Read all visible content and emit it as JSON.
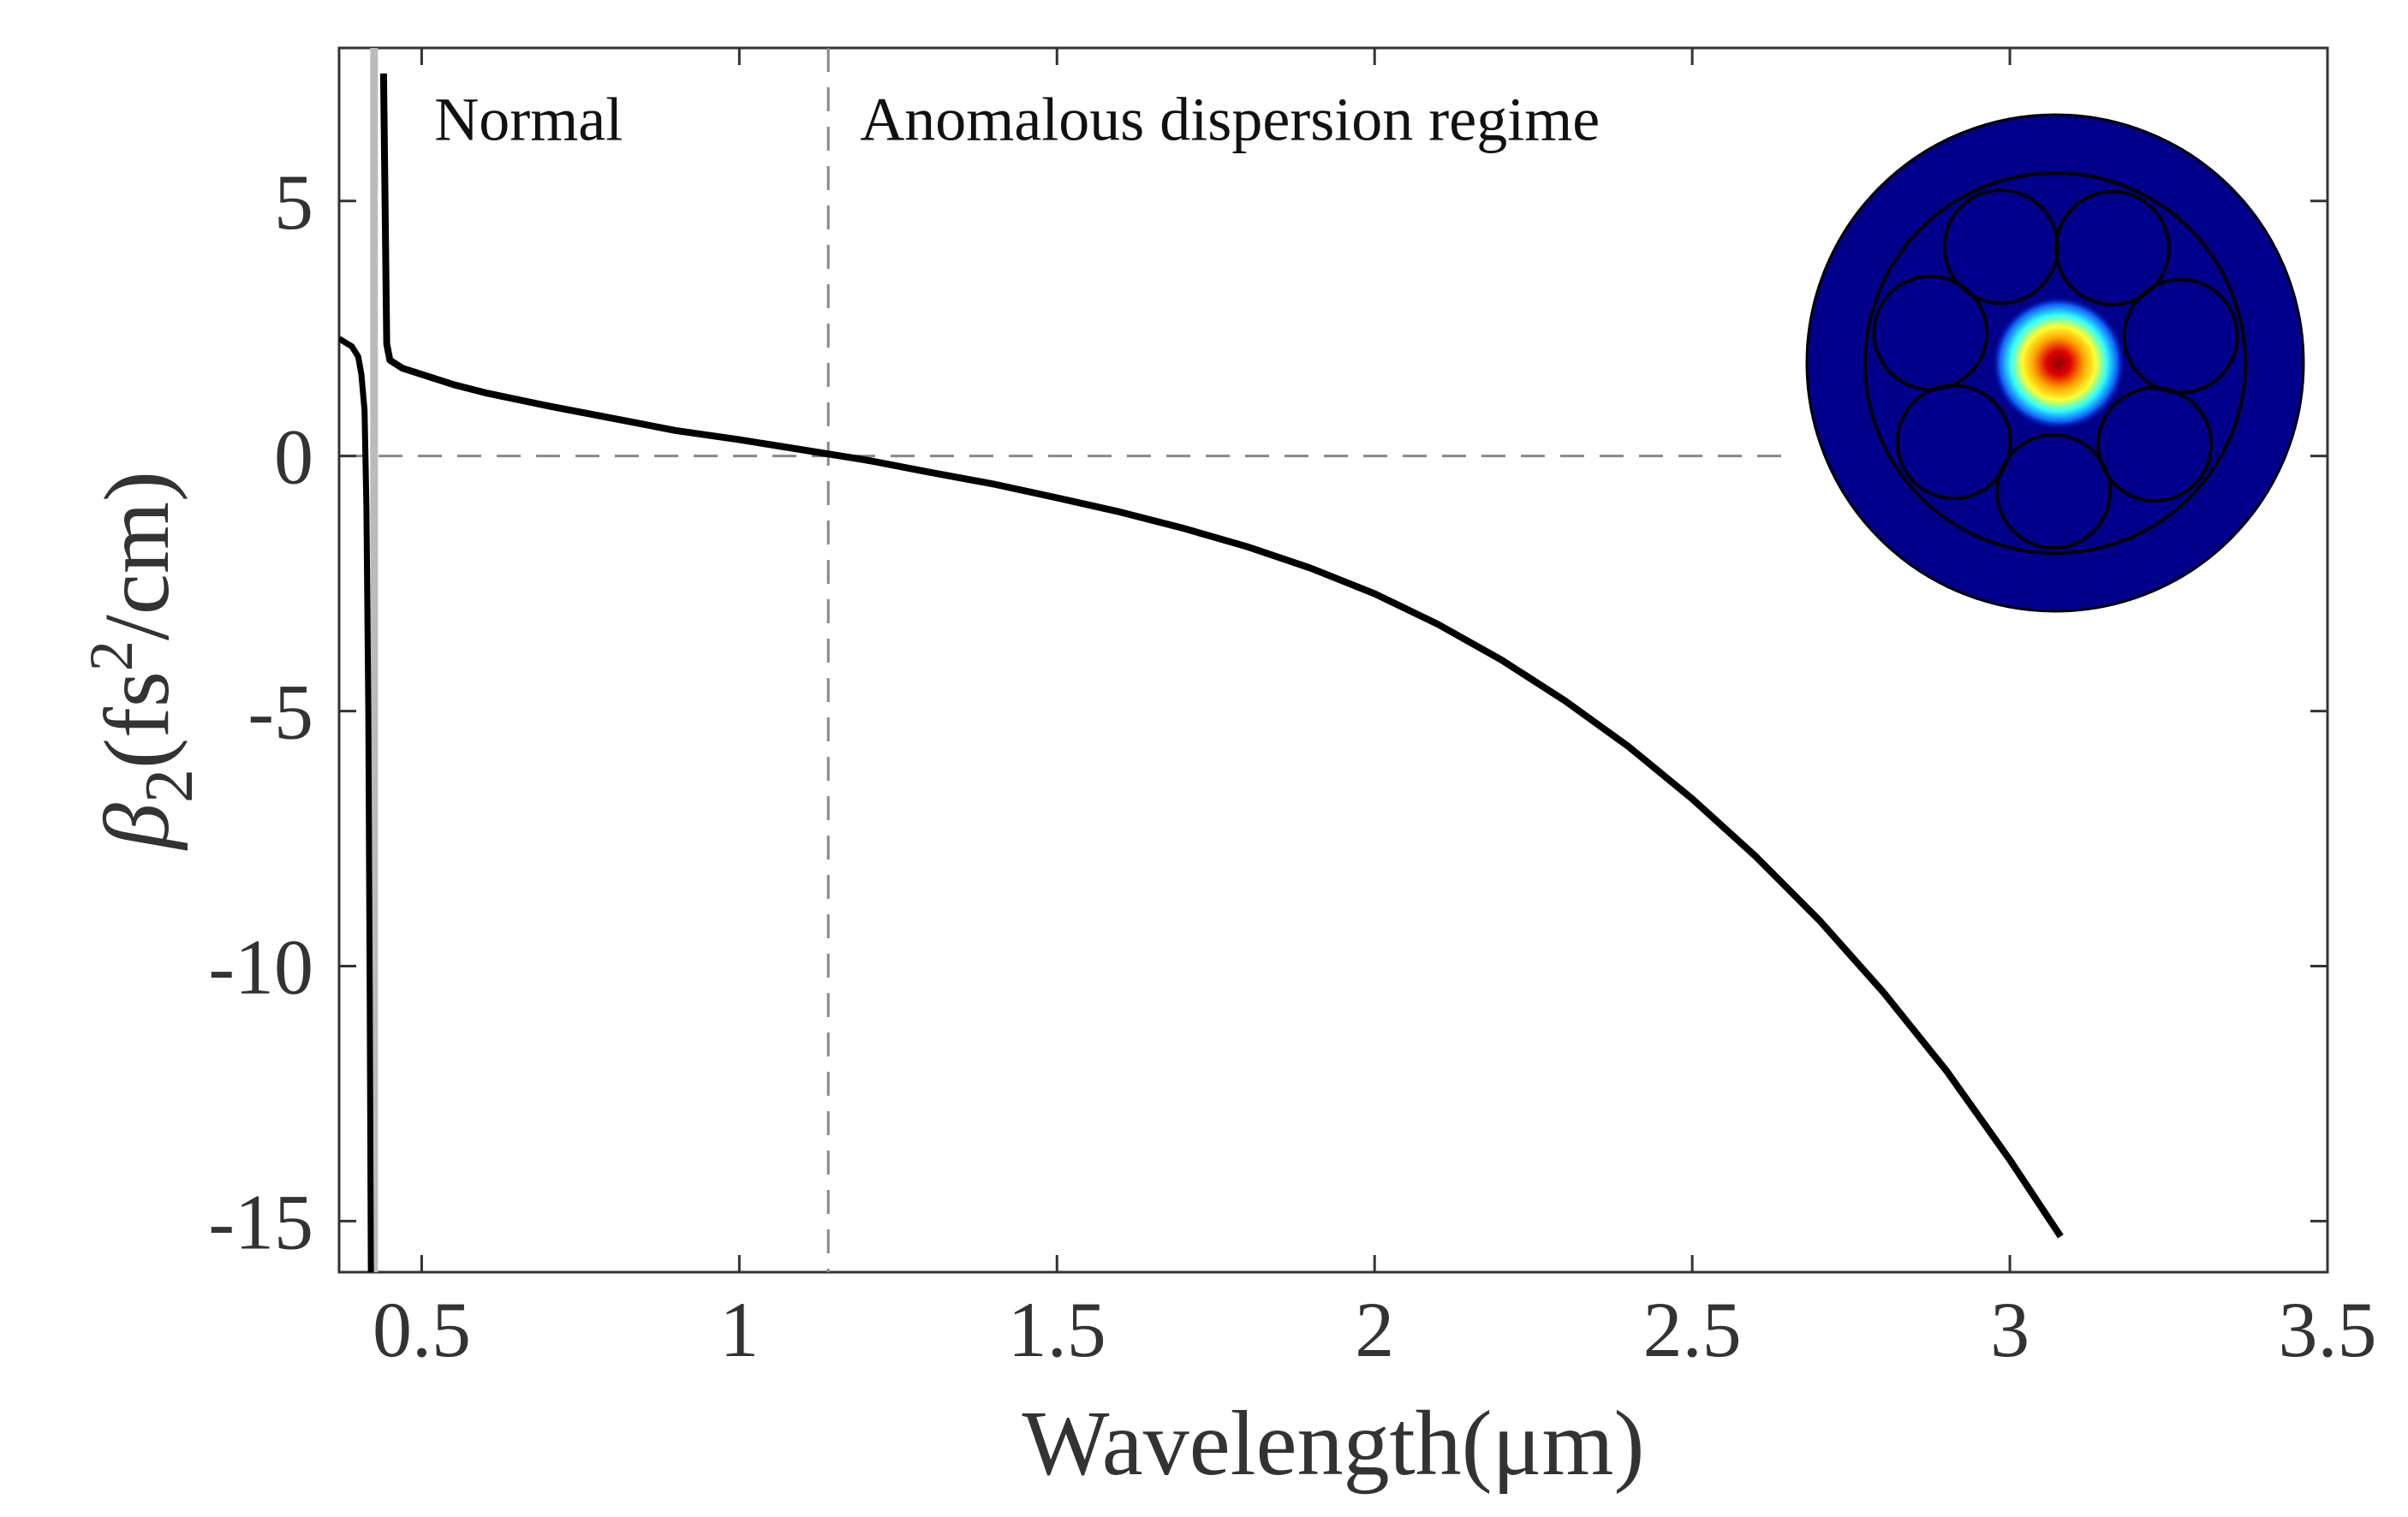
{
  "chart_data": {
    "type": "line",
    "xlabel": "Wavelength(μm)",
    "ylabel_symbol": "β",
    "ylabel_subscript": "2",
    "ylabel_unit_prefix": "(fs",
    "ylabel_unit_power": "2",
    "ylabel_unit_suffix": "/cm)",
    "xlim": [
      0.37,
      3.5
    ],
    "ylim": [
      -16,
      8
    ],
    "xticks": [
      0.5,
      1,
      1.5,
      2,
      2.5,
      3,
      3.5
    ],
    "xtick_labels": [
      "0.5",
      "1",
      "1.5",
      "2",
      "2.5",
      "3",
      "3.5"
    ],
    "yticks": [
      5,
      0,
      -5,
      -10,
      -15
    ],
    "ytick_labels": [
      "5",
      "0",
      "-5",
      "-10",
      "-15"
    ],
    "zero_dispersion_wavelength": 1.14,
    "annotations": [
      {
        "text": "Normal",
        "x": 0.52,
        "y": 6.2
      },
      {
        "text": "Anomalous dispersion regime",
        "x": 1.19,
        "y": 6.2
      }
    ],
    "series": [
      {
        "name": "beta2-main",
        "color": "#000000",
        "x": [
          0.44,
          0.445,
          0.45,
          0.47,
          0.5,
          0.55,
          0.6,
          0.7,
          0.8,
          0.9,
          1.0,
          1.1,
          1.2,
          1.3,
          1.4,
          1.5,
          1.6,
          1.7,
          1.8,
          1.9,
          2.0,
          2.1,
          2.2,
          2.3,
          2.4,
          2.5,
          2.6,
          2.7,
          2.8,
          2.9,
          3.0,
          3.08
        ],
        "y": [
          7.5,
          2.2,
          1.88,
          1.72,
          1.6,
          1.4,
          1.24,
          0.98,
          0.74,
          0.5,
          0.32,
          0.12,
          -0.08,
          -0.32,
          -0.55,
          -0.82,
          -1.1,
          -1.42,
          -1.78,
          -2.2,
          -2.7,
          -3.3,
          -4.0,
          -4.8,
          -5.7,
          -6.72,
          -7.85,
          -9.1,
          -10.5,
          -12.05,
          -13.8,
          -15.3
        ]
      },
      {
        "name": "beta2-short-wavelength-branch",
        "color": "#000000",
        "x": [
          0.37,
          0.39,
          0.4,
          0.405,
          0.41,
          0.413,
          0.416,
          0.418,
          0.42
        ],
        "y": [
          2.3,
          2.15,
          1.95,
          1.6,
          0.9,
          -1.0,
          -5.0,
          -10.0,
          -16.0
        ]
      }
    ],
    "resonance_marker": {
      "name": "resonance-band",
      "x": 0.425,
      "color": "#bbbbbb"
    },
    "reference_lines": {
      "zero_line_color": "#888888",
      "zero_dispersion_line_color": "#888888"
    },
    "inset": {
      "description_name": "fiber-mode-profile",
      "background_color": "#00008b",
      "ring_color": "#000000",
      "mode_colors": [
        "#8b0000",
        "#ff0000",
        "#ffd700",
        "#00ffff",
        "#0000ff"
      ],
      "capillary_count": 7
    }
  }
}
